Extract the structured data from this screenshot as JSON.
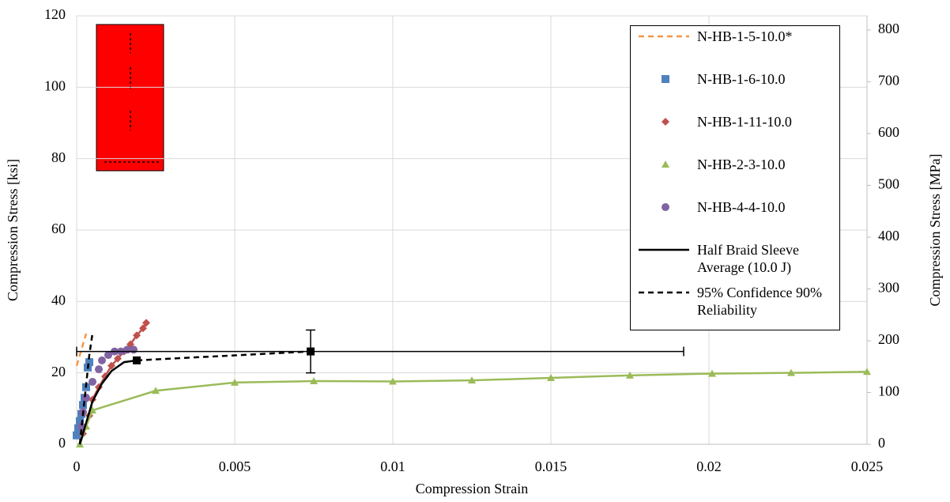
{
  "chart_data": {
    "type": "line",
    "xlabel": "Compression Strain",
    "ylabel": "Compression Stress [ksi]",
    "y2label": "Compression Stress [MPa]",
    "xlim": [
      0,
      0.025
    ],
    "xticks": [
      0,
      0.005,
      0.01,
      0.015,
      0.02,
      0.025
    ],
    "ylim": [
      0,
      120
    ],
    "yticks": [
      0,
      20,
      40,
      60,
      80,
      100,
      120
    ],
    "y2lim": [
      0,
      827.4
    ],
    "y2ticks": [
      0,
      100,
      200,
      300,
      400,
      500,
      600,
      700,
      800
    ],
    "grid": true,
    "legend": "upper right",
    "series": [
      {
        "name": "N-HB-1-5-10.0*",
        "color": "#f79646",
        "line": "dashed",
        "marker": "none",
        "x": [
          0,
          0.0003
        ],
        "values": [
          22,
          31
        ]
      },
      {
        "name": "N-HB-1-6-10.0",
        "color": "#4f81bd",
        "line": "none",
        "marker": "square",
        "x": [
          0,
          5e-05,
          0.0001,
          0.00015,
          0.0002,
          0.00025,
          0.0003,
          0.00035,
          0.0004
        ],
        "values": [
          2.5,
          4.5,
          6.5,
          8.5,
          11,
          13,
          16,
          21.5,
          23
        ]
      },
      {
        "name": "N-HB-1-11-10.0",
        "color": "#c0504d",
        "line": "solid",
        "marker": "diamond",
        "x": [
          0.0002,
          0.0004,
          0.0005,
          0.0007,
          0.0009,
          0.0011,
          0.0013,
          0.0015,
          0.0017,
          0.0019,
          0.0021,
          0.0022
        ],
        "values": [
          3,
          8,
          12.5,
          16,
          19,
          22,
          24,
          26,
          28,
          30.5,
          32.5,
          34
        ]
      },
      {
        "name": "N-HB-2-3-10.0",
        "color": "#9bbb59",
        "line": "solid",
        "marker": "triangle",
        "x": [
          0.0001,
          0.0003,
          0.0005,
          0.0025,
          0.005,
          0.0075,
          0.01,
          0.0125,
          0.015,
          0.0175,
          0.0201,
          0.0226,
          0.025
        ],
        "values": [
          0,
          5,
          9.5,
          15,
          17.3,
          17.7,
          17.6,
          17.9,
          18.6,
          19.3,
          19.8,
          20,
          20.3
        ]
      },
      {
        "name": "N-HB-4-4-10.0",
        "color": "#8064a2",
        "line": "none",
        "marker": "circle",
        "x": [
          0.00015,
          0.0002,
          0.0003,
          0.0005,
          0.0007,
          0.0008,
          0.001,
          0.0012,
          0.0014,
          0.0016,
          0.0018
        ],
        "values": [
          5,
          9,
          13,
          17.5,
          21,
          23.5,
          25,
          26,
          26,
          26.5,
          26.5
        ]
      },
      {
        "name": "Half Braid Sleeve Average (10.0 J)",
        "color": "#000000",
        "line": "solid",
        "marker": "none",
        "end_marker": "square",
        "x": [
          0.0001,
          0.0003,
          0.0005,
          0.0008,
          0.0011,
          0.0015,
          0.0019
        ],
        "values": [
          0,
          6,
          12,
          17,
          20.5,
          23,
          23.5
        ]
      },
      {
        "name": "95% Confidence 90% Reliability",
        "color": "#000000",
        "line": "dashed",
        "marker": "none",
        "x": [
          0.0001,
          0.0004,
          0.0005,
          0.0012,
          0.0019,
          0.0074
        ],
        "values": [
          0,
          25,
          31,
          null,
          23.5,
          26
        ]
      }
    ],
    "error_point": {
      "x": 0.0074,
      "y": 26,
      "yerr": 6,
      "xerr": [
        0.0074,
        0.0118
      ],
      "color": "#000000"
    }
  }
}
